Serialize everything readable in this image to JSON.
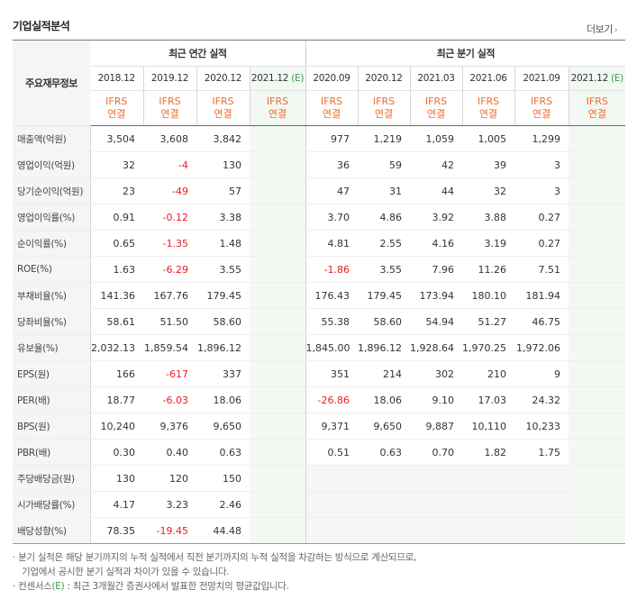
{
  "title": "기업실적분석",
  "more_label": "더보기",
  "header": {
    "row_label": "주요재무정보",
    "annual_group": "최근 연간 실적",
    "quarter_group": "최근 분기 실적",
    "annual_periods": [
      "2018.12",
      "2019.12",
      "2020.12",
      "2021.12 (E)"
    ],
    "quarter_periods": [
      "2020.09",
      "2020.12",
      "2021.03",
      "2021.06",
      "2021.09",
      "2021.12 (E)"
    ],
    "ifrs_top": "IFRS",
    "ifrs_bottom": "연결"
  },
  "rows": [
    {
      "label": "매출액(억원)",
      "annual": [
        "3,504",
        "3,608",
        "3,842",
        ""
      ],
      "quarter": [
        "977",
        "1,219",
        "1,059",
        "1,005",
        "1,299",
        ""
      ]
    },
    {
      "label": "영업이익(억원)",
      "annual": [
        "32",
        "-4",
        "130",
        ""
      ],
      "quarter": [
        "36",
        "59",
        "42",
        "39",
        "3",
        ""
      ]
    },
    {
      "label": "당기순이익(억원)",
      "annual": [
        "23",
        "-49",
        "57",
        ""
      ],
      "quarter": [
        "47",
        "31",
        "44",
        "32",
        "3",
        ""
      ]
    },
    {
      "label": "영업이익률(%)",
      "annual": [
        "0.91",
        "-0.12",
        "3.38",
        ""
      ],
      "quarter": [
        "3.70",
        "4.86",
        "3.92",
        "3.88",
        "0.27",
        ""
      ]
    },
    {
      "label": "순이익률(%)",
      "annual": [
        "0.65",
        "-1.35",
        "1.48",
        ""
      ],
      "quarter": [
        "4.81",
        "2.55",
        "4.16",
        "3.19",
        "0.27",
        ""
      ]
    },
    {
      "label": "ROE(%)",
      "annual": [
        "1.63",
        "-6.29",
        "3.55",
        ""
      ],
      "quarter": [
        "-1.86",
        "3.55",
        "7.96",
        "11.26",
        "7.51",
        ""
      ]
    },
    {
      "label": "부채비율(%)",
      "annual": [
        "141.36",
        "167.76",
        "179.45",
        ""
      ],
      "quarter": [
        "176.43",
        "179.45",
        "173.94",
        "180.10",
        "181.94",
        ""
      ]
    },
    {
      "label": "당좌비율(%)",
      "annual": [
        "58.61",
        "51.50",
        "58.60",
        ""
      ],
      "quarter": [
        "55.38",
        "58.60",
        "54.94",
        "51.27",
        "46.75",
        ""
      ]
    },
    {
      "label": "유보율(%)",
      "annual": [
        "2,032.13",
        "1,859.54",
        "1,896.12",
        ""
      ],
      "quarter": [
        "1,845.00",
        "1,896.12",
        "1,928.64",
        "1,970.25",
        "1,972.06",
        ""
      ]
    },
    {
      "label": "EPS(원)",
      "annual": [
        "166",
        "-617",
        "337",
        ""
      ],
      "quarter": [
        "351",
        "214",
        "302",
        "210",
        "9",
        ""
      ]
    },
    {
      "label": "PER(배)",
      "annual": [
        "18.77",
        "-6.03",
        "18.06",
        ""
      ],
      "quarter": [
        "-26.86",
        "18.06",
        "9.10",
        "17.03",
        "24.32",
        ""
      ]
    },
    {
      "label": "BPS(원)",
      "annual": [
        "10,240",
        "9,376",
        "9,650",
        ""
      ],
      "quarter": [
        "9,371",
        "9,650",
        "9,887",
        "10,110",
        "10,233",
        ""
      ]
    },
    {
      "label": "PBR(배)",
      "annual": [
        "0.30",
        "0.40",
        "0.63",
        ""
      ],
      "quarter": [
        "0.51",
        "0.63",
        "0.70",
        "1.82",
        "1.75",
        ""
      ]
    },
    {
      "label": "주당배당금(원)",
      "annual": [
        "130",
        "120",
        "150",
        ""
      ],
      "quarter": [
        "",
        "",
        "",
        "",
        "",
        ""
      ]
    },
    {
      "label": "시가배당률(%)",
      "annual": [
        "4.17",
        "3.23",
        "2.46",
        ""
      ],
      "quarter": [
        "",
        "",
        "",
        "",
        "",
        ""
      ]
    },
    {
      "label": "배당성향(%)",
      "annual": [
        "78.35",
        "-19.45",
        "44.48",
        ""
      ],
      "quarter": [
        "",
        "",
        "",
        "",
        "",
        ""
      ]
    }
  ],
  "notes": {
    "line1": "· 분기 실적은 해당 분기까지의 누적 실적에서 직전 분기까지의 누적 실적을 차감하는 방식으로 계산되므로,",
    "line2": "기업에서 공시한 분기 실적과 차이가 있을 수 있습니다.",
    "line3_prefix": "· 컨센서스",
    "line3_e": "(E)",
    "line3_suffix": " : 최근 3개월간 증권사에서 발표한 전망치의 평균값입니다."
  },
  "colors": {
    "negative": "#ec1c24",
    "ifrs": "#f06a2a",
    "estimate_text": "#3a9c45",
    "estimate_bg": "#f2f9f3"
  }
}
